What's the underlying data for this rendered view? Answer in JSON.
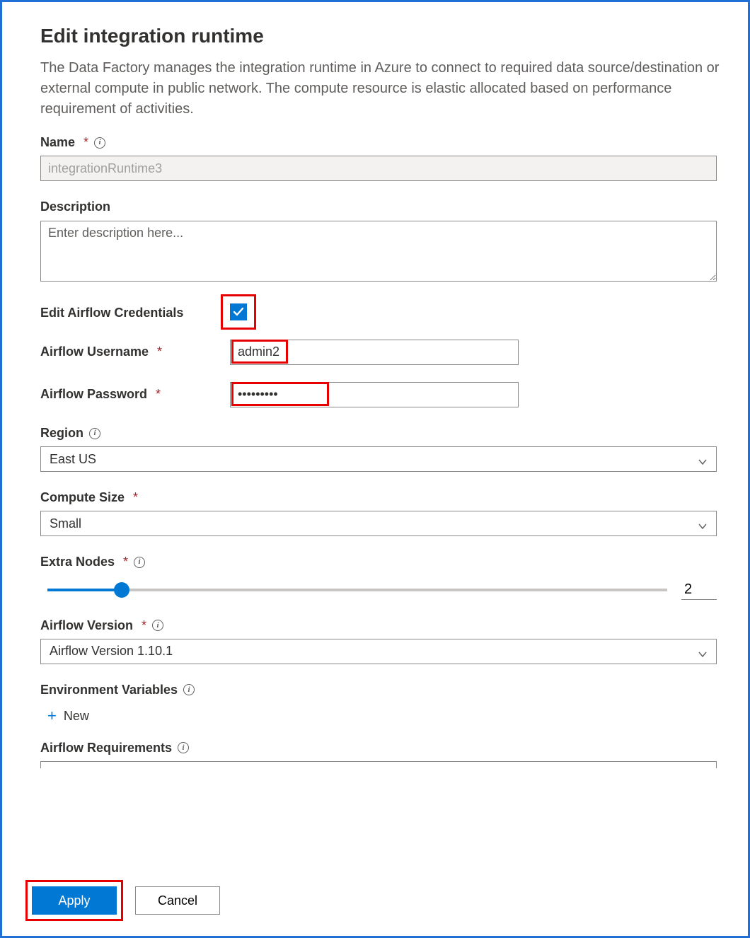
{
  "title": "Edit integration runtime",
  "description": "The Data Factory manages the integration runtime in Azure to connect to required data source/destination or external compute in public network. The compute resource is elastic allocated based on performance requirement of activities.",
  "labels": {
    "name": "Name",
    "description": "Description",
    "edit_credentials": "Edit Airflow Credentials",
    "airflow_username": "Airflow Username",
    "airflow_password": "Airflow Password",
    "region": "Region",
    "compute_size": "Compute Size",
    "extra_nodes": "Extra Nodes",
    "airflow_version": "Airflow Version",
    "env_vars": "Environment Variables",
    "airflow_requirements": "Airflow Requirements",
    "new": "New"
  },
  "fields": {
    "name": {
      "value": "integrationRuntime3",
      "disabled": true
    },
    "description": {
      "placeholder": "Enter description here...",
      "value": ""
    },
    "edit_credentials_checked": true,
    "airflow_username": "admin2",
    "airflow_password_mask": "•••••••••",
    "region": "East US",
    "compute_size": "Small",
    "extra_nodes": {
      "value": 2,
      "min": 0,
      "max": 20,
      "fill_percent": 12
    },
    "airflow_version": "Airflow Version 1.10.1"
  },
  "buttons": {
    "apply": "Apply",
    "cancel": "Cancel"
  },
  "colors": {
    "primary": "#0078d4",
    "highlight": "#e60000",
    "border": "#8a8886",
    "text_muted": "#605e5c",
    "disabled_bg": "#f3f2f1"
  }
}
